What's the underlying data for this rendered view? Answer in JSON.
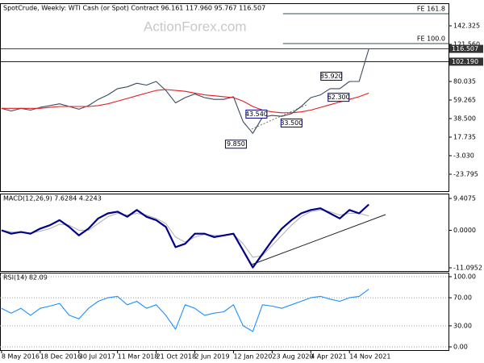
{
  "chart_data": [
    {
      "type": "line",
      "title": "SpotCrude, Weekly:  WTI Cash (or Spot) Contract  96.161 117.960 95.767 116.507",
      "watermark": "ActionForex.com",
      "x": [
        "2016-05-08",
        "2016-07-03",
        "2016-08-28",
        "2016-10-23",
        "2016-12-18",
        "2017-02-12",
        "2017-04-09",
        "2017-06-04",
        "2017-07-30",
        "2017-09-24",
        "2017-11-19",
        "2018-01-14",
        "2018-03-11",
        "2018-05-06",
        "2018-07-01",
        "2018-08-26",
        "2018-10-21",
        "2018-12-16",
        "2019-02-10",
        "2019-04-07",
        "2019-06-02",
        "2019-07-28",
        "2019-09-22",
        "2019-11-17",
        "2020-01-12",
        "2020-03-08",
        "2020-05-03",
        "2020-06-28",
        "2020-08-23",
        "2020-10-18",
        "2020-12-13",
        "2021-02-07",
        "2021-04-04",
        "2021-05-30",
        "2021-07-25",
        "2021-09-19",
        "2021-11-14",
        "2022-01-09",
        "2022-03-06"
      ],
      "series": [
        {
          "color": "#3c4a5c",
          "values": [
            50,
            47,
            50,
            48,
            51,
            53,
            55,
            52,
            49,
            53,
            60,
            65,
            72,
            74,
            78,
            76,
            80,
            70,
            56,
            62,
            66,
            62,
            60,
            60,
            63,
            35,
            22,
            40,
            42,
            41,
            44,
            52,
            62,
            65,
            72,
            72,
            80,
            80,
            116.507
          ]
        },
        {
          "color": "#e02020",
          "values": [
            50,
            50,
            50,
            50,
            50,
            51,
            52,
            52,
            52,
            52,
            53,
            55,
            58,
            61,
            64,
            67,
            70,
            71,
            70,
            69,
            67,
            65,
            64,
            63,
            62,
            58,
            52,
            48,
            46,
            45,
            45,
            46,
            48,
            51,
            54,
            57,
            60,
            63,
            67
          ]
        }
      ],
      "xlim": [
        "2016-04-29",
        "2023-06-11"
      ],
      "ylim": [
        -42.76,
        167.6
      ],
      "yticks": [
        142.325,
        {
          "value": 121.56,
          "label": "121.560"
        },
        80.035,
        59.265,
        {
          "value": 38.5,
          "label": "38.500"
        },
        17.735,
        {
          "value": -3.03,
          "label": "-3.030"
        },
        -23.795
      ],
      "fib_levels": [
        {
          "label": "FE 161.8",
          "value": 155.9,
          "from": "2020-10-25"
        },
        {
          "label": "FE 100.0",
          "value": 122.5,
          "from": "2020-10-25"
        }
      ],
      "price_tags": [
        {
          "value": 116.507,
          "label": "116.507"
        },
        {
          "value": 102.19,
          "label": "102.190"
        }
      ],
      "annotations": [
        {
          "x": "2020-01-26",
          "value": 9.85,
          "label": "9.850"
        },
        {
          "x": "2020-05-24",
          "value": 43.54,
          "label": "43.540"
        },
        {
          "x": "2020-12-13",
          "value": 33.5,
          "label": "33.500"
        },
        {
          "x": "2021-08-01",
          "value": 85.92,
          "label": "85.920"
        },
        {
          "x": "2021-09-12",
          "value": 62.3,
          "label": "62.300"
        }
      ]
    },
    {
      "type": "line",
      "title": "MACD(12,26,9) 7.6284 4.2243",
      "x": [
        "2016-05-08",
        "2016-07-03",
        "2016-08-28",
        "2016-10-23",
        "2016-12-18",
        "2017-02-12",
        "2017-04-09",
        "2017-06-04",
        "2017-07-30",
        "2017-09-24",
        "2017-11-19",
        "2018-01-14",
        "2018-03-11",
        "2018-05-06",
        "2018-07-01",
        "2018-08-26",
        "2018-10-21",
        "2018-12-16",
        "2019-02-10",
        "2019-04-07",
        "2019-06-02",
        "2019-07-28",
        "2019-09-22",
        "2019-11-17",
        "2020-01-12",
        "2020-03-08",
        "2020-05-03",
        "2020-06-28",
        "2020-08-23",
        "2020-10-18",
        "2020-12-13",
        "2021-02-07",
        "2021-04-04",
        "2021-05-30",
        "2021-07-25",
        "2021-09-19",
        "2021-11-14",
        "2022-01-09",
        "2022-03-06"
      ],
      "series": [
        {
          "color": "#b4b4b4",
          "values": [
            0,
            -0.5,
            -0.6,
            -0.8,
            -0.3,
            0.5,
            1.8,
            1.5,
            0,
            0,
            2,
            4,
            5,
            4.5,
            5,
            4.5,
            3.5,
            2,
            -2,
            -3.5,
            -2,
            -1.2,
            -1.5,
            -1.5,
            -1.2,
            -4,
            -8,
            -7.5,
            -4.5,
            -1.5,
            1.5,
            4,
            5.5,
            6,
            5.5,
            4.5,
            5,
            5,
            4.2243
          ]
        },
        {
          "color": "#00008b",
          "values": [
            0,
            -1,
            -0.5,
            -1,
            0.5,
            1.5,
            3,
            1,
            -1.5,
            0.5,
            3.5,
            5,
            5.5,
            4,
            6,
            4,
            3,
            1,
            -5,
            -4,
            -1,
            -1,
            -2,
            -1.5,
            -1,
            -6,
            -11,
            -7,
            -3,
            0.5,
            3,
            5,
            6,
            6.5,
            5,
            3.5,
            6,
            5,
            7.6284
          ]
        }
      ],
      "xlim": [
        "2016-04-29",
        "2023-06-11"
      ],
      "ylim": [
        -12.05,
        10.84
      ],
      "yticks": [
        9.4075,
        {
          "value": 0,
          "label": "0.0000"
        },
        -11.0952
      ]
    },
    {
      "type": "line",
      "title": "RSI(14) 82.09",
      "x": [
        "2016-05-08",
        "2016-07-03",
        "2016-08-28",
        "2016-10-23",
        "2016-12-18",
        "2017-02-12",
        "2017-04-09",
        "2017-06-04",
        "2017-07-30",
        "2017-09-24",
        "2017-11-19",
        "2018-01-14",
        "2018-03-11",
        "2018-05-06",
        "2018-07-01",
        "2018-08-26",
        "2018-10-21",
        "2018-12-16",
        "2019-02-10",
        "2019-04-07",
        "2019-06-02",
        "2019-07-28",
        "2019-09-22",
        "2019-11-17",
        "2020-01-12",
        "2020-03-08",
        "2020-05-03",
        "2020-06-28",
        "2020-08-23",
        "2020-10-18",
        "2020-12-13",
        "2021-02-07",
        "2021-04-04",
        "2021-05-30",
        "2021-07-25",
        "2021-09-19",
        "2021-11-14",
        "2022-01-09",
        "2022-03-06"
      ],
      "series": [
        {
          "color": "#1e90ff",
          "values": [
            55,
            48,
            55,
            45,
            55,
            58,
            62,
            45,
            40,
            55,
            65,
            70,
            72,
            60,
            65,
            55,
            60,
            45,
            25,
            60,
            55,
            45,
            48,
            50,
            60,
            30,
            22,
            60,
            58,
            55,
            60,
            65,
            70,
            72,
            68,
            65,
            70,
            72,
            82.09
          ]
        }
      ],
      "xlim": [
        "2016-04-29",
        "2023-06-11"
      ],
      "ylim": [
        -4.6,
        105.75
      ],
      "yticks": [
        {
          "value": 100,
          "label": "100.00"
        },
        {
          "value": 70,
          "label": "70.00"
        },
        {
          "value": 30,
          "label": "30.00"
        },
        {
          "value": 0,
          "label": "0.00"
        }
      ],
      "grid": true,
      "xticks": [
        {
          "value": "2016-05-08",
          "label": "8 May 2016"
        },
        {
          "value": "2016-12-18",
          "label": "18 Dec 2016"
        },
        {
          "value": "2017-07-30",
          "label": "30 Jul 2017"
        },
        {
          "value": "2018-03-11",
          "label": "11 Mar 2018"
        },
        {
          "value": "2018-10-21",
          "label": "21 Oct 2018"
        },
        {
          "value": "2019-06-02",
          "label": "2 Jun 2019"
        },
        {
          "value": "2020-01-12",
          "label": "12 Jan 2020"
        },
        {
          "value": "2020-08-23",
          "label": "23 Aug 2020"
        },
        {
          "value": "2021-04-04",
          "label": "4 Apr 2021"
        },
        {
          "value": "2021-11-14",
          "label": "14 Nov 2021"
        }
      ]
    }
  ]
}
